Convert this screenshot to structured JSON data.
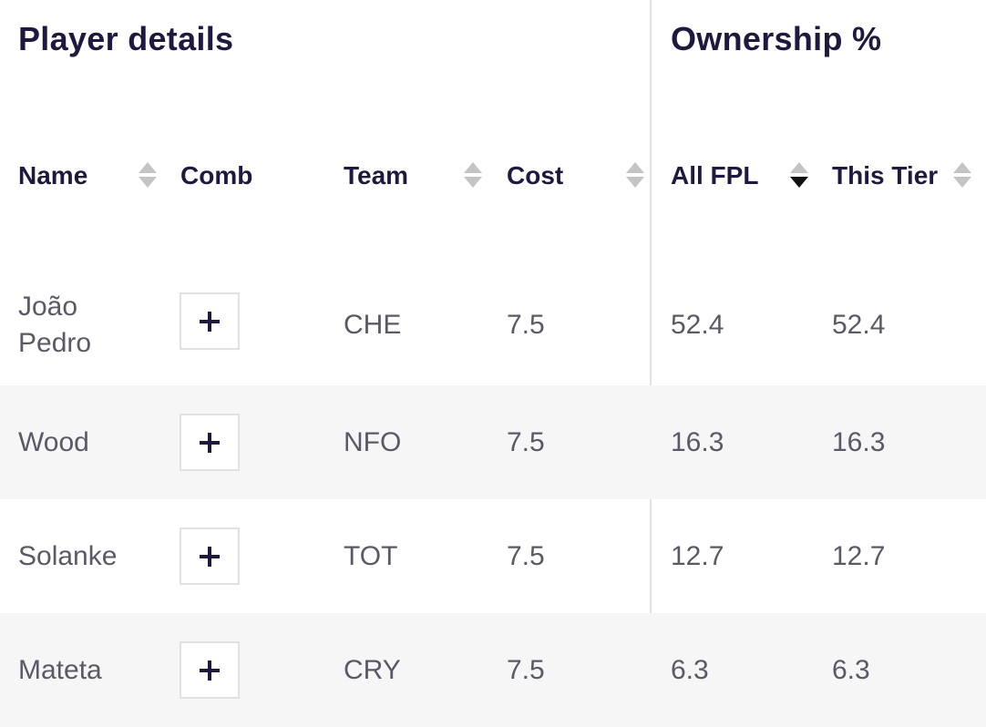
{
  "sections": {
    "player_details": "Player details",
    "ownership": "Ownership %"
  },
  "columns": {
    "name": "Name",
    "comb": "Comb",
    "team": "Team",
    "cost": "Cost",
    "all_fpl": "All FPL",
    "this_tier": "This Tier"
  },
  "sort_state": {
    "active_column": "All FPL",
    "direction": "descending"
  },
  "icons": {
    "sort": "sort-arrows-icon",
    "add": "plus-icon"
  },
  "rows": [
    {
      "name": "João\nPedro",
      "team": "CHE",
      "cost": "7.5",
      "all_fpl": "52.4",
      "this_tier": "52.4"
    },
    {
      "name": "Wood",
      "team": "NFO",
      "cost": "7.5",
      "all_fpl": "16.3",
      "this_tier": "16.3"
    },
    {
      "name": "Solanke",
      "team": "TOT",
      "cost": "7.5",
      "all_fpl": "12.7",
      "this_tier": "12.7"
    },
    {
      "name": "Mateta",
      "team": "CRY",
      "cost": "7.5",
      "all_fpl": "6.3",
      "this_tier": "6.3"
    }
  ],
  "colors": {
    "heading": "#1f1a3d",
    "body_text": "#5a5a66",
    "alt_row": "#f6f6f6",
    "divider": "#e2e2e6",
    "sort_inactive": "#c4c4c4",
    "sort_active": "#111111"
  }
}
